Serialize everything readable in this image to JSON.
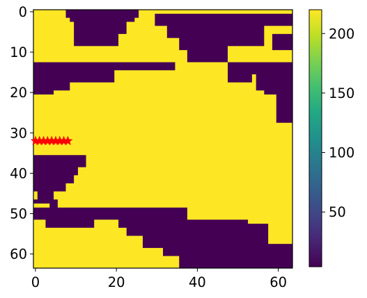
{
  "chart_data": {
    "type": "heatmap",
    "grid_size": [
      64,
      64
    ],
    "x_ticks": [
      0,
      20,
      40,
      60
    ],
    "y_ticks": [
      0,
      10,
      20,
      30,
      40,
      50,
      60
    ],
    "colorbar": {
      "ticks": [
        50,
        100,
        150,
        200
      ],
      "range": [
        4,
        220
      ],
      "colormap": "viridis"
    },
    "values": {
      "low": 4,
      "high": 220
    },
    "colors": {
      "low": "#440154",
      "high": "#fde725",
      "marker": "#ff0000"
    },
    "regions": [
      {
        "name": "top-yellow-left",
        "value": 220,
        "rows": [
          0,
          12
        ]
      },
      {
        "name": "top-purple-left",
        "value": 4,
        "rows": [
          0,
          9
        ]
      },
      {
        "name": "top-purple-right",
        "value": 4,
        "rows": [
          2,
          12
        ]
      },
      {
        "name": "mid-purple-band",
        "value": 4,
        "rows": [
          13,
          20
        ]
      },
      {
        "name": "central-yellow",
        "value": 220,
        "rows": [
          18,
          48
        ]
      },
      {
        "name": "right-purple",
        "value": 4,
        "rows": [
          13,
          27
        ]
      },
      {
        "name": "left-purple-wedge",
        "value": 4,
        "rows": [
          36,
          48
        ]
      },
      {
        "name": "bottom-purple",
        "value": 4,
        "rows": [
          47,
          64
        ]
      },
      {
        "name": "bottom-yellow-left",
        "value": 220,
        "rows": [
          52,
          64
        ]
      },
      {
        "name": "bottom-yellow-right",
        "value": 220,
        "rows": [
          52,
          58
        ]
      }
    ],
    "markers": {
      "symbol": "star",
      "y": 32,
      "x": [
        0,
        1,
        2,
        3,
        4,
        5,
        6,
        7,
        8
      ]
    }
  }
}
